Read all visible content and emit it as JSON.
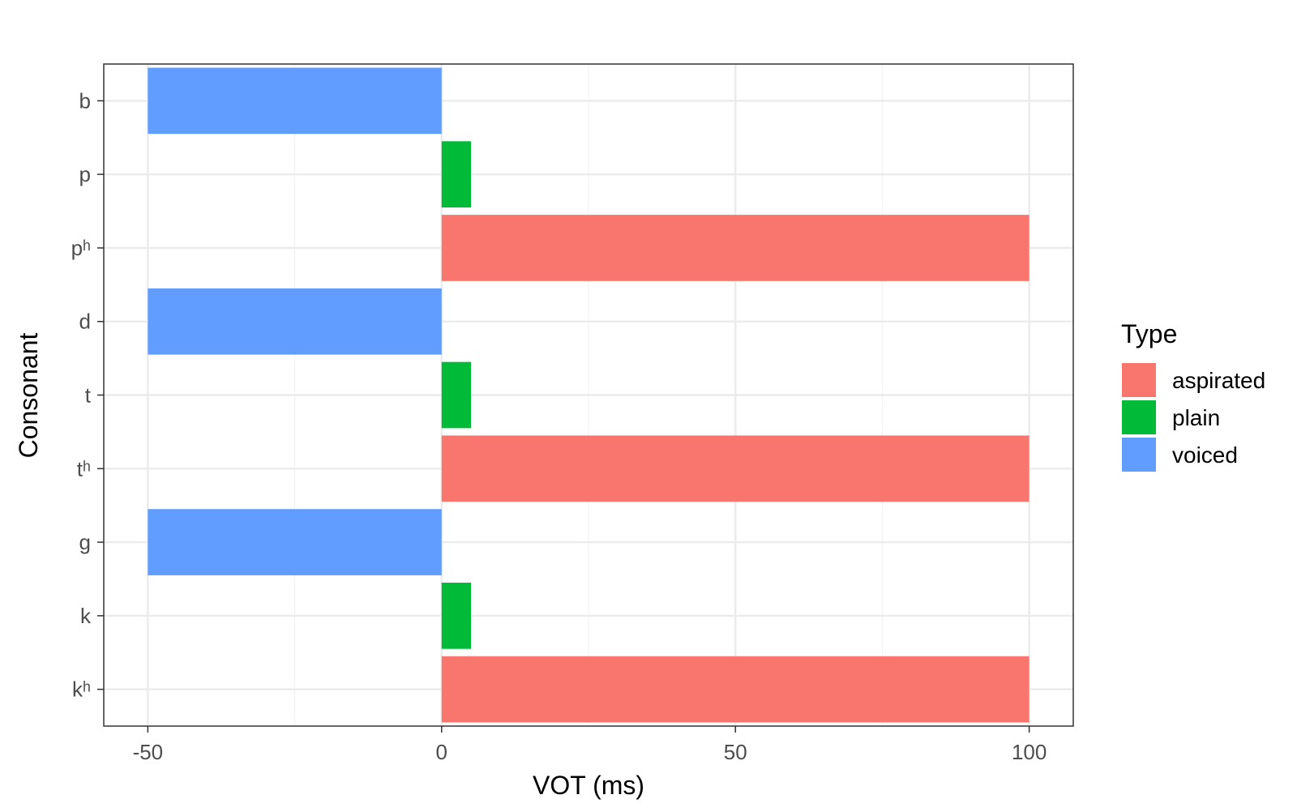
{
  "chart_data": {
    "type": "bar",
    "orientation": "horizontal",
    "categories": [
      "b",
      "p",
      "pʰ",
      "d",
      "t",
      "tʰ",
      "g",
      "k",
      "kʰ"
    ],
    "values": [
      -50,
      5,
      100,
      -50,
      5,
      100,
      -50,
      5,
      100
    ],
    "types": [
      "voiced",
      "plain",
      "aspirated",
      "voiced",
      "plain",
      "aspirated",
      "voiced",
      "plain",
      "aspirated"
    ],
    "xlabel": "VOT (ms)",
    "ylabel": "Consonant",
    "xlim": [
      -57.5,
      107.5
    ],
    "xticks": [
      -50,
      0,
      50,
      100
    ],
    "xtick_labels": [
      "-50",
      "0",
      "50",
      "100"
    ],
    "grid": true,
    "legend": {
      "title": "Type",
      "position": "right",
      "entries": [
        {
          "name": "aspirated",
          "color": "#F8766D"
        },
        {
          "name": "plain",
          "color": "#00BA38"
        },
        {
          "name": "voiced",
          "color": "#619CFF"
        }
      ]
    }
  }
}
